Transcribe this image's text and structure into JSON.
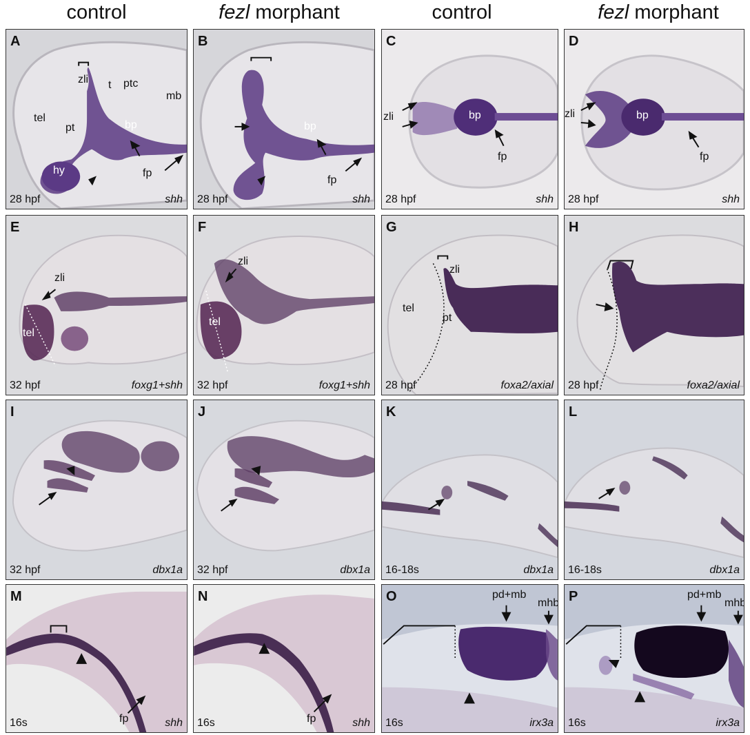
{
  "headers": {
    "h1": "control",
    "h2_italic": "fezl",
    "h2_rest": " morphant",
    "h3": "control",
    "h4_italic": "fezl",
    "h4_rest": " morphant"
  },
  "panels": {
    "A": {
      "label": "A",
      "stage": "28 hpf",
      "gene": "shh",
      "anns": [
        "zli",
        "t",
        "ptc",
        "mb",
        "tel",
        "pt",
        "bp",
        "hy",
        "fp"
      ]
    },
    "B": {
      "label": "B",
      "stage": "28 hpf",
      "gene": "shh",
      "anns": [
        "bp",
        "fp"
      ]
    },
    "C": {
      "label": "C",
      "stage": "28 hpf",
      "gene": "shh",
      "anns": [
        "zli",
        "bp",
        "fp"
      ]
    },
    "D": {
      "label": "D",
      "stage": "28 hpf",
      "gene": "shh",
      "anns": [
        "zli",
        "bp",
        "fp"
      ]
    },
    "E": {
      "label": "E",
      "stage": "32 hpf",
      "gene": "foxg1+shh",
      "anns": [
        "zli",
        "tel"
      ]
    },
    "F": {
      "label": "F",
      "stage": "32 hpf",
      "gene": "foxg1+shh",
      "anns": [
        "zli",
        "tel"
      ]
    },
    "G": {
      "label": "G",
      "stage": "28 hpf",
      "gene": "foxa2/axial",
      "anns": [
        "zli",
        "tel",
        "pt"
      ]
    },
    "H": {
      "label": "H",
      "stage": "28 hpf",
      "gene": "foxa2/axial",
      "anns": []
    },
    "I": {
      "label": "I",
      "stage": "32 hpf",
      "gene": "dbx1a",
      "anns": []
    },
    "J": {
      "label": "J",
      "stage": "32 hpf",
      "gene": "dbx1a",
      "anns": []
    },
    "K": {
      "label": "K",
      "stage": "16-18s",
      "gene": "dbx1a",
      "anns": []
    },
    "L": {
      "label": "L",
      "stage": "16-18s",
      "gene": "dbx1a",
      "anns": []
    },
    "M": {
      "label": "M",
      "stage": "16s",
      "gene": "shh",
      "anns": [
        "fp"
      ]
    },
    "N": {
      "label": "N",
      "stage": "16s",
      "gene": "shh",
      "anns": [
        "fp"
      ]
    },
    "O": {
      "label": "O",
      "stage": "16s",
      "gene": "irx3a",
      "anns": [
        "pd+mb",
        "mhb"
      ]
    },
    "P": {
      "label": "P",
      "stage": "16s",
      "gene": "irx3a",
      "anns": [
        "pd+mb",
        "mhb"
      ]
    }
  },
  "colors": {
    "stain": "#4a2a6e",
    "stain_light": "#8a6ea8",
    "tissue": "#e4e1e6",
    "bg_light": "#d4d4d9",
    "bg_blue": "#c6ccd8"
  }
}
